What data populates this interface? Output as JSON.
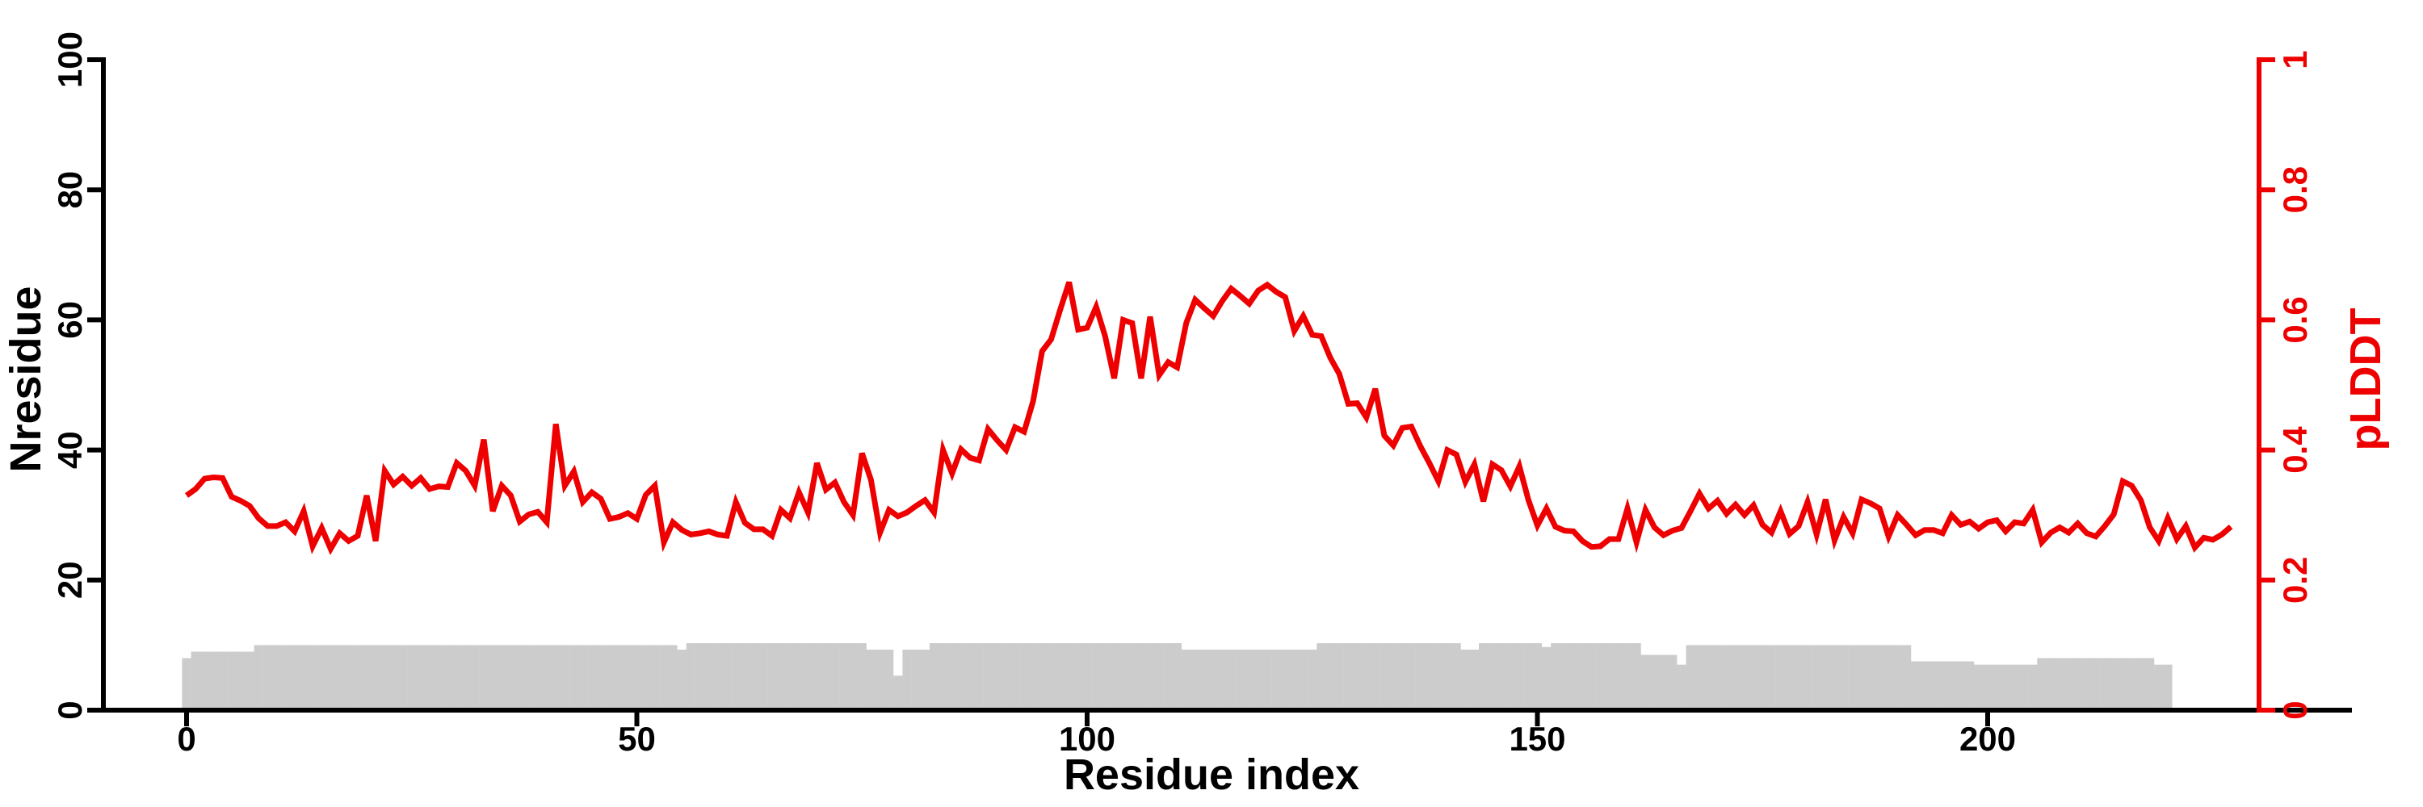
{
  "chart_data": {
    "type": "line",
    "title": "",
    "xlabel": "Residue index",
    "ylabel_left": "Nresidue",
    "ylabel_right": "pLDDT",
    "x_ticks": [
      "0",
      "50",
      "100",
      "150",
      "200"
    ],
    "x_tick_values": [
      0,
      50,
      100,
      150,
      200
    ],
    "left_ticks": [
      "0",
      "20",
      "40",
      "60",
      "80",
      "100"
    ],
    "left_tick_values": [
      0,
      20,
      40,
      60,
      80,
      100
    ],
    "right_ticks": [
      "0",
      "0.2",
      "0.4",
      "0.6",
      "0.8",
      "1"
    ],
    "right_tick_values": [
      0,
      0.2,
      0.4,
      0.6,
      0.8,
      1
    ],
    "left_range": [
      0,
      100
    ],
    "right_range": [
      0,
      1
    ],
    "x_range": [
      0,
      232
    ],
    "grid": "off",
    "legend": "none",
    "colors": {
      "line": "#ee0000",
      "bars": "#cccccc",
      "axis": "#000000",
      "right_axis": "#ee0000",
      "background": "#ffffff"
    },
    "series": [
      {
        "name": "pLDDT",
        "axis": "right",
        "x_start": 0,
        "values": [
          0.33,
          0.34,
          0.356,
          0.358,
          0.357,
          0.328,
          0.322,
          0.314,
          0.295,
          0.283,
          0.283,
          0.289,
          0.275,
          0.306,
          0.252,
          0.28,
          0.248,
          0.272,
          0.26,
          0.268,
          0.33,
          0.26,
          0.368,
          0.347,
          0.359,
          0.345,
          0.357,
          0.34,
          0.344,
          0.343,
          0.38,
          0.368,
          0.345,
          0.416,
          0.306,
          0.345,
          0.33,
          0.29,
          0.301,
          0.305,
          0.289,
          0.44,
          0.345,
          0.367,
          0.32,
          0.335,
          0.325,
          0.294,
          0.297,
          0.303,
          0.294,
          0.331,
          0.345,
          0.258,
          0.289,
          0.277,
          0.27,
          0.272,
          0.275,
          0.27,
          0.268,
          0.32,
          0.288,
          0.278,
          0.278,
          0.268,
          0.308,
          0.295,
          0.335,
          0.304,
          0.38,
          0.339,
          0.35,
          0.32,
          0.3,
          0.395,
          0.354,
          0.273,
          0.308,
          0.298,
          0.304,
          0.314,
          0.323,
          0.304,
          0.4,
          0.364,
          0.401,
          0.388,
          0.384,
          0.432,
          0.415,
          0.4,
          0.435,
          0.428,
          0.475,
          0.552,
          0.57,
          0.615,
          0.658,
          0.585,
          0.588,
          0.62,
          0.575,
          0.51,
          0.6,
          0.595,
          0.51,
          0.605,
          0.515,
          0.535,
          0.527,
          0.595,
          0.631,
          0.618,
          0.606,
          0.629,
          0.648,
          0.637,
          0.625,
          0.645,
          0.654,
          0.643,
          0.635,
          0.583,
          0.606,
          0.577,
          0.575,
          0.542,
          0.517,
          0.471,
          0.472,
          0.45,
          0.494,
          0.422,
          0.407,
          0.434,
          0.436,
          0.406,
          0.38,
          0.352,
          0.4,
          0.393,
          0.351,
          0.378,
          0.321,
          0.378,
          0.369,
          0.344,
          0.375,
          0.323,
          0.284,
          0.31,
          0.282,
          0.276,
          0.275,
          0.26,
          0.251,
          0.252,
          0.263,
          0.263,
          0.31,
          0.258,
          0.308,
          0.281,
          0.269,
          0.276,
          0.28,
          0.306,
          0.333,
          0.31,
          0.322,
          0.302,
          0.316,
          0.3,
          0.315,
          0.285,
          0.273,
          0.306,
          0.271,
          0.283,
          0.32,
          0.27,
          0.324,
          0.261,
          0.297,
          0.272,
          0.324,
          0.318,
          0.31,
          0.267,
          0.3,
          0.285,
          0.269,
          0.277,
          0.277,
          0.272,
          0.3,
          0.285,
          0.29,
          0.279,
          0.289,
          0.292,
          0.275,
          0.289,
          0.287,
          0.308,
          0.258,
          0.273,
          0.281,
          0.273,
          0.287,
          0.272,
          0.267,
          0.283,
          0.301,
          0.352,
          0.345,
          0.323,
          0.281,
          0.26,
          0.295,
          0.263,
          0.283,
          0.25,
          0.265,
          0.262,
          0.27,
          0.282
        ]
      },
      {
        "name": "Nresidue",
        "axis": "left",
        "style": "bars",
        "x_start": 0,
        "values": [
          8,
          9,
          9,
          9,
          9,
          9,
          9,
          9,
          10,
          10,
          10,
          10,
          10,
          10,
          10,
          10,
          10,
          10,
          10,
          10,
          10,
          10,
          10,
          10,
          10,
          10,
          10,
          10,
          10,
          10,
          10,
          10,
          10,
          10,
          10,
          10,
          10,
          10,
          10,
          10,
          10,
          10,
          10,
          10,
          10,
          10,
          10,
          10,
          10,
          10,
          10,
          10,
          10,
          10,
          10,
          9.3,
          10.3,
          10.3,
          10.3,
          10.3,
          10.3,
          10.3,
          10.3,
          10.3,
          10.3,
          10.3,
          10.3,
          10.3,
          10.3,
          10.3,
          10.3,
          10.3,
          10.3,
          10.3,
          10.3,
          10.3,
          9.3,
          9.3,
          9.3,
          5.3,
          9.3,
          9.3,
          9.3,
          10.3,
          10.3,
          10.3,
          10.3,
          10.3,
          10.3,
          10.3,
          10.3,
          10.3,
          10.3,
          10.3,
          10.3,
          10.3,
          10.3,
          10.3,
          10.3,
          10.3,
          10.3,
          10.3,
          10.3,
          10.3,
          10.3,
          10.3,
          10.3,
          10.3,
          10.3,
          10.3,
          10.3,
          9.3,
          9.3,
          9.3,
          9.3,
          9.3,
          9.3,
          9.3,
          9.3,
          9.3,
          9.3,
          9.3,
          9.3,
          9.3,
          9.3,
          9.3,
          10.3,
          10.3,
          10.3,
          10.3,
          10.3,
          10.3,
          10.3,
          10.3,
          10.3,
          10.3,
          10.3,
          10.3,
          10.3,
          10.3,
          10.3,
          10.3,
          9.3,
          9.3,
          10.3,
          10.3,
          10.3,
          10.3,
          10.3,
          10.3,
          10.3,
          9.7,
          10.3,
          10.3,
          10.3,
          10.3,
          10.3,
          10.3,
          10.3,
          10.3,
          10.3,
          10.3,
          8.5,
          8.5,
          8.5,
          8.5,
          7,
          10,
          10,
          10,
          10,
          10,
          10,
          10,
          10,
          10,
          10,
          10,
          10,
          10,
          10,
          10,
          10,
          10,
          10,
          10,
          10,
          10,
          10,
          10,
          10,
          10,
          7.5,
          7.5,
          7.5,
          7.5,
          7.5,
          7.5,
          7.5,
          7,
          7,
          7,
          7,
          7,
          7,
          7,
          8,
          8,
          8,
          8,
          8,
          8,
          8,
          8,
          8,
          8,
          8,
          8,
          8,
          7,
          7
        ]
      }
    ]
  }
}
